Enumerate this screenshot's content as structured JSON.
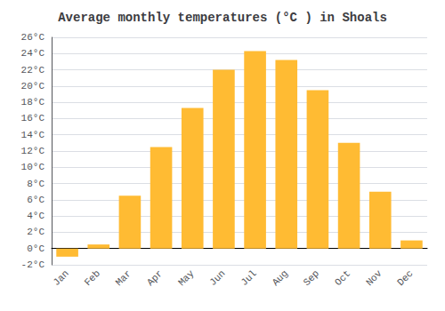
{
  "chart_data": {
    "type": "bar",
    "title": "Average monthly temperatures (°C ) in Shoals",
    "categories": [
      "Jan",
      "Feb",
      "Mar",
      "Apr",
      "May",
      "Jun",
      "Jul",
      "Aug",
      "Sep",
      "Oct",
      "Nov",
      "Dec"
    ],
    "values": [
      -1.0,
      0.5,
      6.5,
      12.5,
      17.3,
      22.0,
      24.3,
      23.2,
      19.5,
      13.0,
      7.0,
      1.0
    ],
    "color": "#FFBB33",
    "ylim": [
      -2,
      26
    ],
    "yticks": [
      {
        "value": -2,
        "label": "-2°C"
      },
      {
        "value": 0,
        "label": "0°C"
      },
      {
        "value": 2,
        "label": "2°C"
      },
      {
        "value": 4,
        "label": "4°C"
      },
      {
        "value": 6,
        "label": "6°C"
      },
      {
        "value": 8,
        "label": "8°C"
      },
      {
        "value": 10,
        "label": "10°C"
      },
      {
        "value": 12,
        "label": "12°C"
      },
      {
        "value": 14,
        "label": "14°C"
      },
      {
        "value": 16,
        "label": "16°C"
      },
      {
        "value": 18,
        "label": "18°C"
      },
      {
        "value": 20,
        "label": "20°C"
      },
      {
        "value": 22,
        "label": "22°C"
      },
      {
        "value": 24,
        "label": "24°C"
      },
      {
        "value": 26,
        "label": "26°C"
      }
    ],
    "grid": true
  }
}
